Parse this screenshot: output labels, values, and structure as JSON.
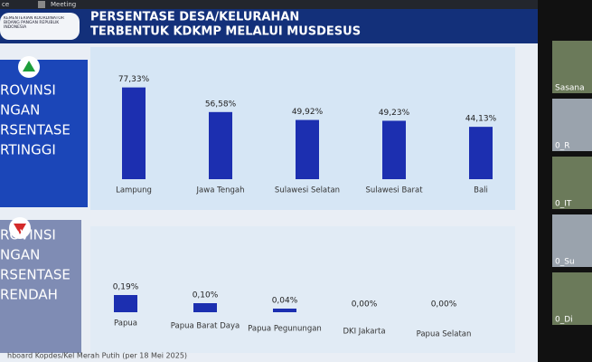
{
  "window": {
    "app": "ce",
    "tab": "Meeting"
  },
  "header": {
    "org": "KEMENTERIAN KOORDINATOR BIDANG PANGAN REPUBLIK INDONESIA",
    "title_line1": "PERSENTASE DESA/KELURAHAN",
    "title_line2": "TERBENTUK KDKMP MELALUI MUSDESUS"
  },
  "panels": [
    {
      "lines": [
        "ROVINSI",
        "NGAN",
        "RSENTASE",
        "RTINGGI"
      ]
    },
    {
      "lines": [
        "ROVINSI",
        "NGAN",
        "RSENTASE",
        "RENDAH"
      ]
    }
  ],
  "footnote": "hboard Kopdes/Kel Merah Putih (per 18 Mei 2025)",
  "participants": [
    "Sasana",
    "0_R",
    "0_IT",
    "0_Su",
    "0_Di"
  ],
  "chart_data": [
    {
      "type": "bar",
      "color": "#1c2fb0",
      "categories": [
        "Lampung",
        "Jawa Tengah",
        "Sulawesi Selatan",
        "Sulawesi Barat",
        "Bali"
      ],
      "values": [
        77.33,
        56.58,
        49.92,
        49.23,
        44.13
      ],
      "value_labels": [
        "77,33%",
        "56,58%",
        "49,92%",
        "49,23%",
        "44,13%"
      ],
      "ylim": [
        0,
        90
      ]
    },
    {
      "type": "bar",
      "color": "#1c2fb0",
      "categories": [
        "Papua",
        "Papua Barat Daya",
        "Papua Pegunungan",
        "DKI Jakarta",
        "Papua Selatan"
      ],
      "values": [
        0.19,
        0.1,
        0.04,
        0.0,
        0.0
      ],
      "value_labels": [
        "0,19%",
        "0,10%",
        "0,04%",
        "0,00%",
        "0,00%"
      ],
      "ylim": [
        0,
        1
      ]
    }
  ]
}
